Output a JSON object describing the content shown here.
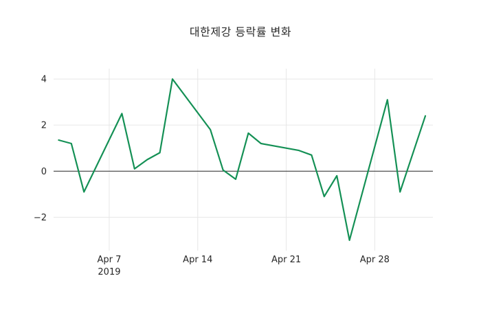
{
  "chart_data": {
    "type": "line",
    "title": "대한제강 등락률 변화",
    "x_axis": {
      "tick_days": [
        7,
        14,
        21,
        28
      ],
      "tick_labels": [
        "Apr 7",
        "Apr 14",
        "Apr 21",
        "Apr 28"
      ],
      "year_label": "2019",
      "range_days": [
        2.6,
        32.6
      ]
    },
    "y_axis": {
      "ticks": [
        -2,
        0,
        2,
        4
      ],
      "range": [
        -3.45,
        4.45
      ]
    },
    "grid": true,
    "legend": false,
    "series": [
      {
        "color": "#149055",
        "points": [
          {
            "date": "2019-04-03",
            "day": 3,
            "value": 1.35
          },
          {
            "date": "2019-04-04",
            "day": 4,
            "value": 1.2
          },
          {
            "date": "2019-04-05",
            "day": 5,
            "value": -0.9
          },
          {
            "date": "2019-04-08",
            "day": 8,
            "value": 2.5
          },
          {
            "date": "2019-04-09",
            "day": 9,
            "value": 0.1
          },
          {
            "date": "2019-04-10",
            "day": 10,
            "value": 0.5
          },
          {
            "date": "2019-04-11",
            "day": 11,
            "value": 0.8
          },
          {
            "date": "2019-04-12",
            "day": 12,
            "value": 4.0
          },
          {
            "date": "2019-04-15",
            "day": 15,
            "value": 1.8
          },
          {
            "date": "2019-04-16",
            "day": 16,
            "value": 0.05
          },
          {
            "date": "2019-04-17",
            "day": 17,
            "value": -0.35
          },
          {
            "date": "2019-04-18",
            "day": 18,
            "value": 1.65
          },
          {
            "date": "2019-04-19",
            "day": 19,
            "value": 1.2
          },
          {
            "date": "2019-04-22",
            "day": 22,
            "value": 0.9
          },
          {
            "date": "2019-04-23",
            "day": 23,
            "value": 0.7
          },
          {
            "date": "2019-04-24",
            "day": 24,
            "value": -1.1
          },
          {
            "date": "2019-04-25",
            "day": 25,
            "value": -0.2
          },
          {
            "date": "2019-04-26",
            "day": 26,
            "value": -3.0
          },
          {
            "date": "2019-04-29",
            "day": 29,
            "value": 3.1
          },
          {
            "date": "2019-04-30",
            "day": 30,
            "value": -0.9
          },
          {
            "date": "2019-05-02",
            "day": 32,
            "value": 2.4
          }
        ]
      }
    ],
    "style": {
      "grid_color": "#e6e6e6",
      "zero_line_color": "#3d3d3d",
      "text_color": "#262626",
      "background": "#ffffff"
    }
  }
}
